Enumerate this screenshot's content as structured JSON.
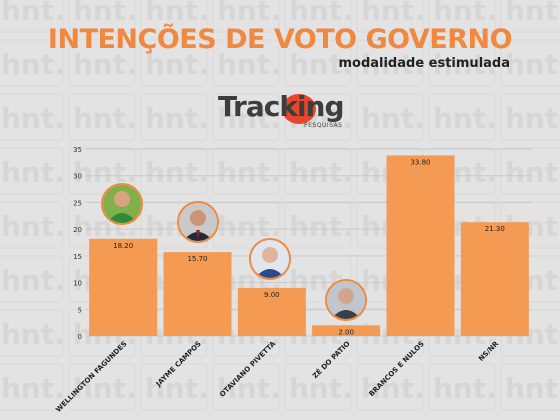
{
  "header": {
    "title": "INTENÇÕES DE VOTO GOVERNO",
    "subtitle": "modalidade estimulada"
  },
  "logo": {
    "word": "Tracking",
    "tagline": "PESQUISAS",
    "accent_color": "#e8452c"
  },
  "watermark_text": "hnt.",
  "colors": {
    "bar": "#f59a52",
    "title": "#f0883f",
    "background": "#e3e3e3"
  },
  "chart_data": {
    "type": "bar",
    "title": "INTENÇÕES DE VOTO GOVERNO",
    "subtitle": "modalidade estimulada",
    "categories": [
      "WELLINGTON FAGUNDES",
      "JAYME CAMPOS",
      "OTAVIANO PIVETTA",
      "ZÉ DO PATIO",
      "BRANCOS E NULOS",
      "NS/NR"
    ],
    "values": [
      18.2,
      15.7,
      9.0,
      2.0,
      33.8,
      21.3
    ],
    "value_labels": [
      "18.20",
      "15.70",
      "9.00",
      "2.00",
      "33.80",
      "21.30"
    ],
    "yticks": [
      0,
      5,
      10,
      15,
      20,
      25,
      30,
      35
    ],
    "ylim": [
      0,
      35
    ],
    "grid": true,
    "photo_icons": [
      "wellington-photo-icon",
      "jayme-photo-icon",
      "otaviano-photo-icon",
      "ze-photo-icon"
    ]
  }
}
